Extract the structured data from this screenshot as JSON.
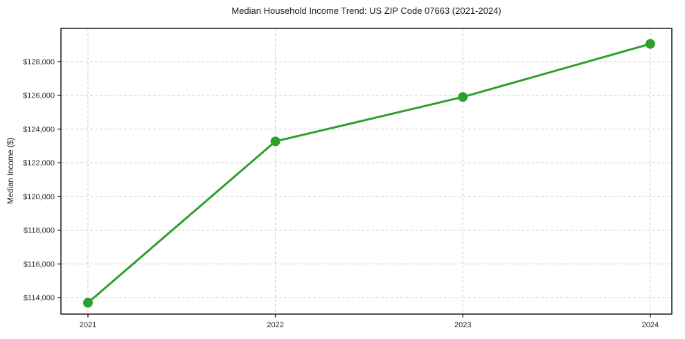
{
  "page": {
    "background": "#ffffff"
  },
  "chart_data": {
    "type": "line",
    "title": "Median Household Income Trend: US ZIP Code 07663 (2021-2024)",
    "xlabel": "",
    "ylabel": "Median Income ($)",
    "x": [
      2021,
      2022,
      2023,
      2024
    ],
    "x_tick_labels": [
      "2021",
      "2022",
      "2023",
      "2024"
    ],
    "series": [
      {
        "name": "median-household-income",
        "values": [
          113700,
          123270,
          125900,
          129050
        ],
        "color": "#2ca02c",
        "marker": "circle"
      }
    ],
    "y_ticks": [
      114000,
      116000,
      118000,
      120000,
      122000,
      124000,
      126000,
      128000
    ],
    "y_tick_labels": [
      "$114,000",
      "$116,000",
      "$118,000",
      "$120,000",
      "$122,000",
      "$124,000",
      "$126,000",
      "$128,000"
    ],
    "xlim": [
      2020.856,
      2024.115
    ],
    "ylim": [
      113030,
      129970
    ],
    "grid": "dashed",
    "grid_color": "#cccccc",
    "axis_color": "#1a1a1a",
    "tick_label_color": "#262626",
    "legend_position": "none"
  }
}
